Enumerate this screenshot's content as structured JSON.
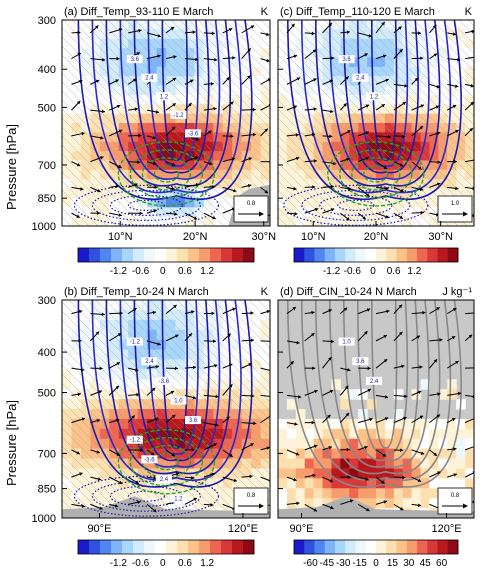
{
  "figure": {
    "ylabel": "Pressure [hPa]",
    "pressure_ticks": [
      "300",
      "400",
      "500",
      "700",
      "850",
      "1000"
    ]
  },
  "chart_data": [
    {
      "type": "heatmap",
      "panel": "a",
      "title": "(a) Diff_Temp_93-110 E March",
      "unit": "K",
      "x_ticks": [
        "10°N",
        "20°N",
        "30°N"
      ],
      "y_ticks": [
        "300",
        "400",
        "500",
        "700",
        "850",
        "1000"
      ],
      "vector_ref": "0.8",
      "contour_labels": [
        "3.6",
        "2.4",
        "1.2",
        "-1.2",
        "-3.6"
      ],
      "colorbar_ticks": [
        "-1.2",
        "-0.6",
        "0",
        "0.6",
        "1.2"
      ],
      "colorscale": [
        "#1a1acc",
        "#2f52e0",
        "#4f86f0",
        "#7fb4f8",
        "#a9d6fb",
        "#d3ecfb",
        "#eef7fb",
        "#ffffff",
        "#fdf3d8",
        "#fde0b0",
        "#fbc38a",
        "#f79c6c",
        "#ee6650",
        "#d93838",
        "#b8181e",
        "#8e0a14"
      ]
    },
    {
      "type": "heatmap",
      "panel": "c",
      "title": "(c) Diff_Temp_110-120 E March",
      "unit": "K",
      "x_ticks": [
        "10°N",
        "20°N",
        "30°N"
      ],
      "y_ticks": [
        "300",
        "400",
        "500",
        "700",
        "850",
        "1000"
      ],
      "vector_ref": "1.0",
      "contour_labels": [
        "3.6",
        "2.4",
        "1.2"
      ],
      "colorbar_ticks": [
        "-1.2",
        "-0.6",
        "0",
        "0.6",
        "1.2"
      ]
    },
    {
      "type": "heatmap",
      "panel": "b",
      "title": "(b) Diff_Temp_10-24 N March",
      "unit": "K",
      "x_ticks": [
        "90°E",
        "120°E"
      ],
      "y_ticks": [
        "300",
        "400",
        "500",
        "700",
        "850",
        "1000"
      ],
      "vector_ref": "0.8",
      "contour_labels": [
        "-1.2",
        "2.4",
        "-3.6",
        "1.0",
        "3.6",
        "-1.2",
        "-3.6",
        "2.4",
        "1.2"
      ],
      "colorbar_ticks": [
        "-1.2",
        "-0.6",
        "0",
        "0.6",
        "1.2"
      ]
    },
    {
      "type": "heatmap",
      "panel": "d",
      "title": "(d) Diff_CIN_10-24 N March",
      "unit": "J kg⁻¹",
      "x_ticks": [
        "90°E",
        "120°E"
      ],
      "y_ticks": [
        "300",
        "400",
        "500",
        "700",
        "850",
        "1000"
      ],
      "vector_ref": "0.8",
      "contour_labels": [
        "1.0",
        "3.6",
        "2.4"
      ],
      "colorbar_ticks": [
        "-60",
        "-45",
        "-30",
        "-15",
        "0",
        "15",
        "30",
        "45",
        "60"
      ],
      "colorscale": [
        "#1a1acc",
        "#2f52e0",
        "#4f86f0",
        "#7fb4f8",
        "#a9d6fb",
        "#d3ecfb",
        "#eef7fb",
        "#ffffff",
        "#fdf3d8",
        "#fde0b0",
        "#fbc38a",
        "#f79c6c",
        "#ee6650",
        "#d93838",
        "#b8181e",
        "#8e0a14"
      ]
    }
  ]
}
